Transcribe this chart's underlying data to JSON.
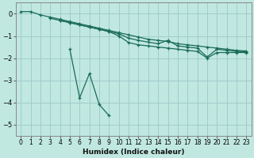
{
  "xlabel": "Humidex (Indice chaleur)",
  "background_color": "#c0e8e0",
  "grid_color": "#a0cccc",
  "line_color": "#1a6b5a",
  "xlim": [
    -0.5,
    23.5
  ],
  "ylim": [
    -5.5,
    0.5
  ],
  "yticks": [
    0,
    -1,
    -2,
    -3,
    -4,
    -5
  ],
  "xticks": [
    0,
    1,
    2,
    3,
    4,
    5,
    6,
    7,
    8,
    9,
    10,
    11,
    12,
    13,
    14,
    15,
    16,
    17,
    18,
    19,
    20,
    21,
    22,
    23
  ],
  "series": [
    {
      "x": [
        0,
        1,
        2,
        3,
        4,
        5,
        6,
        7,
        8,
        9,
        10,
        11,
        12,
        13,
        14,
        15,
        16,
        17,
        18,
        19,
        20,
        21,
        22,
        23
      ],
      "y": [
        0.1,
        0.1,
        -0.05,
        -0.15,
        -0.25,
        -0.35,
        -0.45,
        -0.55,
        -0.65,
        -0.75,
        -0.85,
        -0.95,
        -1.05,
        -1.15,
        -1.2,
        -1.25,
        -1.35,
        -1.4,
        -1.45,
        -1.5,
        -1.55,
        -1.6,
        -1.65,
        -1.68
      ]
    },
    {
      "x": [
        3,
        4,
        5,
        6,
        7,
        8,
        9,
        10,
        11,
        12,
        13,
        14,
        15,
        16,
        17,
        18,
        19,
        20,
        21,
        22,
        23
      ],
      "y": [
        -0.2,
        -0.3,
        -0.4,
        -0.5,
        -0.6,
        -0.7,
        -0.8,
        -0.9,
        -1.1,
        -1.2,
        -1.28,
        -1.35,
        -1.2,
        -1.45,
        -1.5,
        -1.55,
        -1.95,
        -1.6,
        -1.65,
        -1.7,
        -1.72
      ]
    },
    {
      "x": [
        4,
        5,
        6,
        7,
        8,
        9,
        10,
        11,
        12,
        13,
        14,
        15,
        16,
        17,
        18,
        19,
        20,
        21,
        22,
        23
      ],
      "y": [
        -0.3,
        -0.4,
        -0.5,
        -0.6,
        -0.7,
        -0.8,
        -1.0,
        -1.3,
        -1.4,
        -1.45,
        -1.5,
        -1.55,
        -1.6,
        -1.65,
        -1.7,
        -2.0,
        -1.75,
        -1.75,
        -1.75,
        -1.75
      ]
    },
    {
      "x": [
        5,
        6,
        7,
        8,
        9
      ],
      "y": [
        -1.6,
        -3.8,
        -2.7,
        -4.1,
        -4.6
      ]
    }
  ]
}
